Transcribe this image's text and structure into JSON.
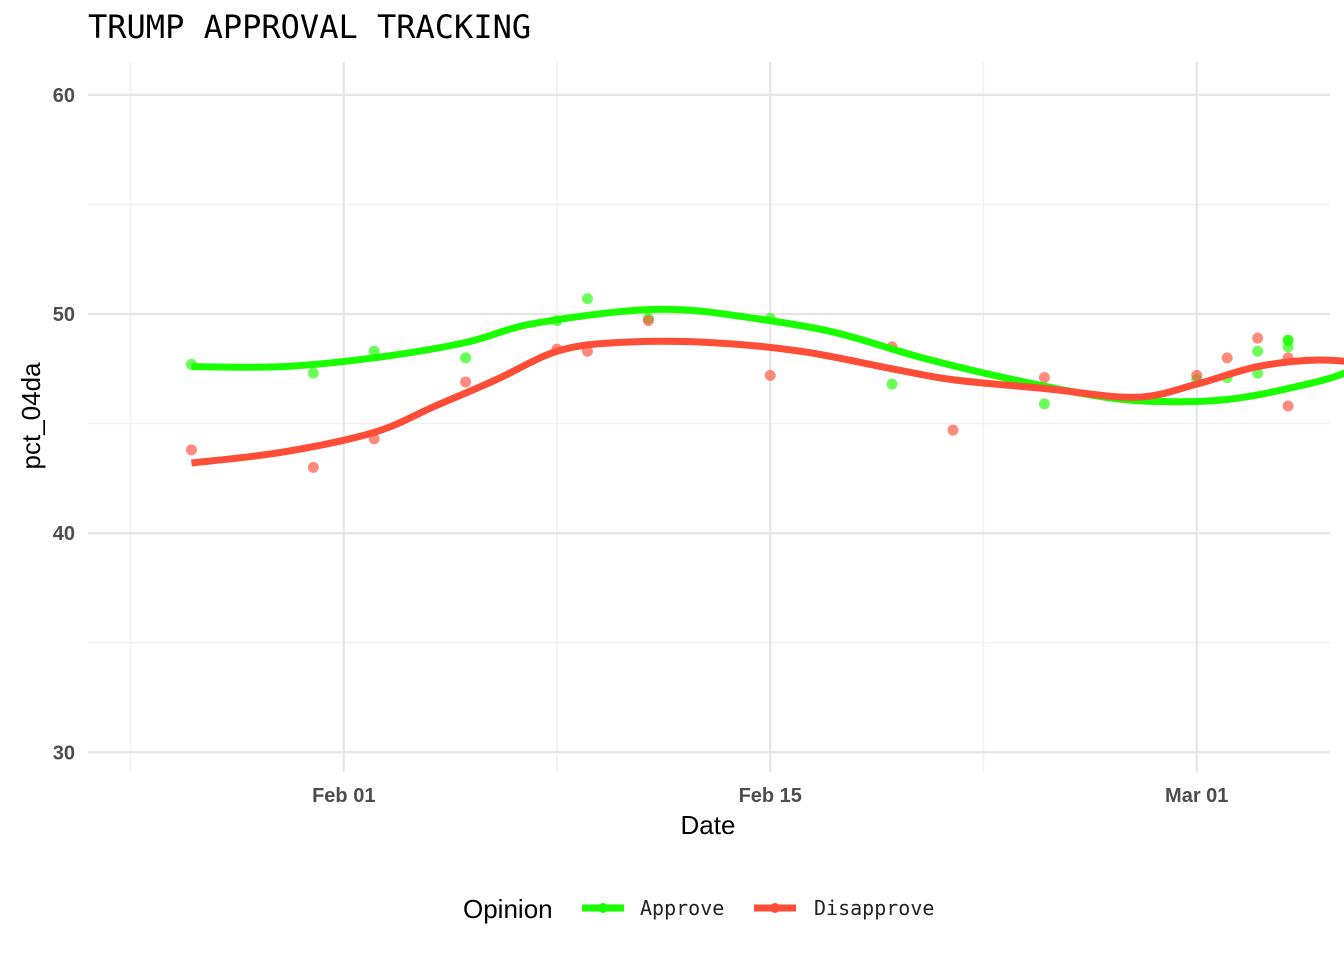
{
  "chart_data": {
    "type": "scatter",
    "title": "TRUMP APPROVAL TRACKING",
    "xlabel": "Date",
    "ylabel": "pct_04da",
    "x_ticks": [
      {
        "date": "2025-02-01",
        "label": "Feb 01"
      },
      {
        "date": "2025-02-15",
        "label": "Feb 15"
      },
      {
        "date": "2025-03-01",
        "label": "Mar 01"
      }
    ],
    "x_minor_ticks": [
      "2025-01-25",
      "2025-02-08",
      "2025-02-22"
    ],
    "xlim": [
      "2025-01-23T14:30",
      "2025-03-05T09:00"
    ],
    "y_ticks": [
      30,
      40,
      50,
      60
    ],
    "ylim": [
      29.1,
      61.5
    ],
    "grid": true,
    "legend": {
      "title": "Opinion",
      "position": "bottom",
      "entries": [
        "Approve",
        "Disapprove"
      ]
    },
    "series": [
      {
        "name": "Approve",
        "color": "#1aff00",
        "points": [
          [
            "2025-01-27",
            47.7
          ],
          [
            "2025-01-31",
            47.3
          ],
          [
            "2025-02-02",
            48.3
          ],
          [
            "2025-02-05",
            48.0
          ],
          [
            "2025-02-08",
            49.7
          ],
          [
            "2025-02-09",
            50.7
          ],
          [
            "2025-02-11",
            49.8
          ],
          [
            "2025-02-15",
            49.8
          ],
          [
            "2025-02-19",
            46.8
          ],
          [
            "2025-02-24",
            45.9
          ],
          [
            "2025-02-29",
            47.0
          ],
          [
            "2025-03-02",
            47.1
          ],
          [
            "2025-03-03",
            47.3
          ],
          [
            "2025-03-03",
            48.3
          ],
          [
            "2025-03-04",
            48.8
          ],
          [
            "2025-03-04",
            48.5
          ],
          [
            "2025-03-04",
            48.8
          ]
        ],
        "smooth": [
          [
            "2025-01-27",
            47.6
          ],
          [
            "2025-01-30",
            47.6
          ],
          [
            "2025-02-02",
            48.0
          ],
          [
            "2025-02-05",
            48.7
          ],
          [
            "2025-02-07",
            49.5
          ],
          [
            "2025-02-10",
            50.1
          ],
          [
            "2025-02-12",
            50.2
          ],
          [
            "2025-02-14",
            49.9
          ],
          [
            "2025-02-17",
            49.2
          ],
          [
            "2025-02-20",
            48.0
          ],
          [
            "2025-02-23",
            47.0
          ],
          [
            "2025-02-26",
            46.2
          ],
          [
            "2025-02-28",
            46.0
          ],
          [
            "2025-03-02",
            46.1
          ],
          [
            "2025-03-04",
            46.6
          ],
          [
            "2025-03-06",
            47.4
          ],
          [
            "2025-03-07",
            48.7
          ]
        ]
      },
      {
        "name": "Disapprove",
        "color": "#ff4d38",
        "points": [
          [
            "2025-01-27",
            43.8
          ],
          [
            "2025-01-31",
            43.0
          ],
          [
            "2025-02-02",
            44.3
          ],
          [
            "2025-02-05",
            46.9
          ],
          [
            "2025-02-08",
            48.4
          ],
          [
            "2025-02-09",
            48.3
          ],
          [
            "2025-02-11",
            49.7
          ],
          [
            "2025-02-15",
            47.2
          ],
          [
            "2025-02-19",
            48.5
          ],
          [
            "2025-02-21",
            44.7
          ],
          [
            "2025-02-24",
            47.1
          ],
          [
            "2025-02-29",
            47.2
          ],
          [
            "2025-03-02",
            48.0
          ],
          [
            "2025-03-03",
            48.9
          ],
          [
            "2025-03-04",
            45.8
          ],
          [
            "2025-03-04",
            48.0
          ]
        ],
        "smooth": [
          [
            "2025-01-27",
            43.2
          ],
          [
            "2025-01-30",
            43.7
          ],
          [
            "2025-02-02",
            44.6
          ],
          [
            "2025-02-04",
            45.8
          ],
          [
            "2025-02-06",
            47.0
          ],
          [
            "2025-02-08",
            48.3
          ],
          [
            "2025-02-10",
            48.7
          ],
          [
            "2025-02-13",
            48.7
          ],
          [
            "2025-02-16",
            48.3
          ],
          [
            "2025-02-19",
            47.5
          ],
          [
            "2025-02-21",
            47.0
          ],
          [
            "2025-02-24",
            46.6
          ],
          [
            "2025-02-27",
            46.2
          ],
          [
            "2025-03-01",
            46.8
          ],
          [
            "2025-03-03",
            47.6
          ],
          [
            "2025-03-05",
            47.9
          ],
          [
            "2025-03-07",
            47.7
          ]
        ]
      }
    ]
  }
}
